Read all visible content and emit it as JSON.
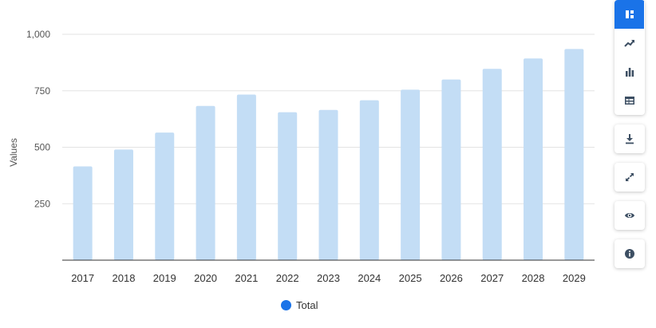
{
  "chart_data": {
    "type": "bar",
    "categories": [
      "2017",
      "2018",
      "2019",
      "2020",
      "2021",
      "2022",
      "2023",
      "2024",
      "2025",
      "2026",
      "2027",
      "2028",
      "2029"
    ],
    "series": [
      {
        "name": "Total",
        "values": [
          415,
          490,
          565,
          683,
          733,
          655,
          665,
          708,
          755,
          800,
          847,
          893,
          935
        ]
      }
    ],
    "ylabel": "Values",
    "xlabel": "",
    "ylim": [
      0,
      1000
    ],
    "yticks": [
      250,
      500,
      750,
      1000
    ],
    "ytick_labels": [
      "250",
      "500",
      "750",
      "1,000"
    ],
    "grid": true,
    "legend": "bottom-center",
    "bar_color": "#c3ddf5",
    "legend_color": "#1a73e8"
  },
  "legend_label": "Total",
  "toolbar": {
    "buttons": [
      {
        "name": "dashboard-icon",
        "active": true
      },
      {
        "name": "line-chart-icon"
      },
      {
        "name": "bar-chart-icon"
      },
      {
        "name": "table-icon"
      },
      {
        "name": "download-icon"
      },
      {
        "name": "expand-icon"
      },
      {
        "name": "eye-icon"
      },
      {
        "name": "info-icon"
      }
    ]
  }
}
